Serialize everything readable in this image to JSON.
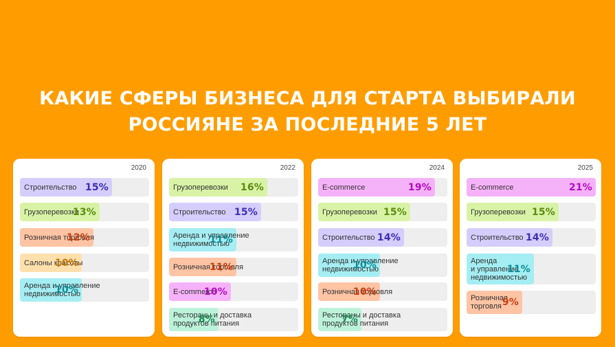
{
  "title": {
    "line1": "КАКИЕ СФЕРЫ БИЗНЕСА ДЛЯ СТАРТА ВЫБИРАЛИ",
    "line2": "РОССИЯНЕ ЗА ПОСЛЕДНИЕ 5 ЛЕТ"
  },
  "colors": {
    "background": "#ff9d00",
    "categories": {
      "Строительство": {
        "fill": "#d5cdfb",
        "text": "#3b2db8"
      },
      "Грузоперевозки": {
        "fill": "#d9f3a6",
        "text": "#5a8a10"
      },
      "Розничная торговля": {
        "fill": "#ffc4a4",
        "text": "#c83d10"
      },
      "Салоны красоты": {
        "fill": "#ffe0ad",
        "text": "#c27a06"
      },
      "Аренда и управление недвижимостью": {
        "fill": "#a4eef3",
        "text": "#0e8c98"
      },
      "E-commerce": {
        "fill": "#f6b2f9",
        "text": "#b20cc0"
      },
      "Рестораны и доставка продуктов питания": {
        "fill": "#bdf2da",
        "text": "#188a52"
      }
    }
  },
  "chart_data": [
    {
      "type": "bar",
      "year": "2020",
      "items": [
        {
          "label": "Строительство",
          "display": "Строительство",
          "value": 15,
          "value_text": "15%"
        },
        {
          "label": "Грузоперевозки",
          "display": "Грузоперевозки",
          "value": 13,
          "value_text": "13%"
        },
        {
          "label": "Розничная торговля",
          "display": "Розничная торговля",
          "value": 12,
          "value_text": "12%"
        },
        {
          "label": "Салоны красоты",
          "display": "Салоны красоты",
          "value": 10,
          "value_text": "10%"
        },
        {
          "label": "Аренда и управление недвижимостью",
          "display": "Аренда и управление\nнедвижимостью",
          "value": 10,
          "value_text": "10%"
        }
      ]
    },
    {
      "type": "bar",
      "year": "2022",
      "items": [
        {
          "label": "Грузоперевозки",
          "display": "Грузоперевозки",
          "value": 16,
          "value_text": "16%"
        },
        {
          "label": "Строительство",
          "display": "Строительство",
          "value": 15,
          "value_text": "15%"
        },
        {
          "label": "Аренда и управление недвижимостью",
          "display": "Аренда и управление\nнедвижимостью",
          "value": 11,
          "value_text": "11%"
        },
        {
          "label": "Розничная торговля",
          "display": "Розничная торговля",
          "value": 11,
          "value_text": "11%"
        },
        {
          "label": "E-commerce",
          "display": "E-commerce",
          "value": 10,
          "value_text": "10%"
        },
        {
          "label": "Рестораны и доставка продуктов питания",
          "display": "Рестораны и доставка\nпродуктов питания",
          "value": 8,
          "value_text": "8%"
        }
      ]
    },
    {
      "type": "bar",
      "year": "2024",
      "items": [
        {
          "label": "E-commerce",
          "display": "E-commerce",
          "value": 19,
          "value_text": "19%"
        },
        {
          "label": "Грузоперевозки",
          "display": "Грузоперевозки",
          "value": 15,
          "value_text": "15%"
        },
        {
          "label": "Строительство",
          "display": "Строительство",
          "value": 14,
          "value_text": "14%"
        },
        {
          "label": "Аренда и управление недвижимостью",
          "display": "Аренда и управление\nнедвижимостью",
          "value": 10,
          "value_text": "10%"
        },
        {
          "label": "Розничная торговля",
          "display": "Розничная торговля",
          "value": 10,
          "value_text": "10%"
        },
        {
          "label": "Рестораны и доставка продуктов питания",
          "display": "Рестораны и доставка\nпродуктов питания",
          "value": 7,
          "value_text": "7%"
        }
      ]
    },
    {
      "type": "bar",
      "year": "2025",
      "items": [
        {
          "label": "E-commerce",
          "display": "E-commerce",
          "value": 21,
          "value_text": "21%"
        },
        {
          "label": "Грузоперевозки",
          "display": "Грузоперевозки",
          "value": 15,
          "value_text": "15%"
        },
        {
          "label": "Строительство",
          "display": "Строительство",
          "value": 14,
          "value_text": "14%"
        },
        {
          "label": "Аренда и управление недвижимостью",
          "display": "Аренда\nи управление\nнедвижимостью",
          "value": 11,
          "value_text": "11%"
        },
        {
          "label": "Розничная торговля",
          "display": "Розничная\nторговля",
          "value": 9,
          "value_text": "9%"
        }
      ]
    }
  ]
}
